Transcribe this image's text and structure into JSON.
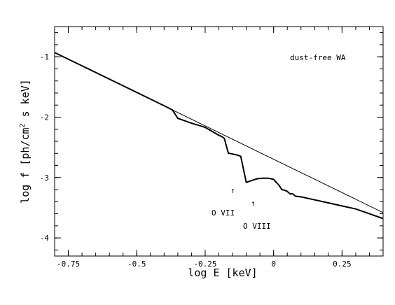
{
  "chart_data": {
    "type": "line",
    "xlabel": "log E [keV]",
    "ylabel_main": "log f [ph/cm",
    "ylabel_sup": "2",
    "ylabel_tail": " s keV]",
    "xlim": [
      -0.8,
      0.4
    ],
    "ylim": [
      -4.3,
      -0.5
    ],
    "xticks": [
      -0.75,
      -0.5,
      -0.25,
      0,
      0.25
    ],
    "xtick_labels": [
      "-0.75",
      "-0.5",
      "-0.25",
      "0",
      "0.25"
    ],
    "yticks": [
      -1,
      -2,
      -3,
      -4
    ],
    "ytick_labels": [
      "-1",
      "-2",
      "-3",
      "-4"
    ],
    "series": [
      {
        "style": "thin",
        "x": [
          -0.8,
          0.4
        ],
        "y": [
          -0.93,
          -3.58
        ]
      },
      {
        "style": "thick",
        "x": [
          -0.8,
          -0.7,
          -0.6,
          -0.5,
          -0.4,
          -0.37,
          -0.35,
          -0.3,
          -0.25,
          -0.2,
          -0.19,
          -0.18,
          -0.17,
          -0.165,
          -0.16,
          -0.13,
          -0.12,
          -0.1,
          -0.08,
          -0.06,
          -0.04,
          -0.02,
          0.0,
          0.02,
          0.03,
          0.04,
          0.05,
          0.06,
          0.07,
          0.08,
          0.1,
          0.15,
          0.2,
          0.25,
          0.3,
          0.35,
          0.4
        ],
        "y": [
          -0.93,
          -1.15,
          -1.37,
          -1.59,
          -1.81,
          -1.88,
          -2.02,
          -2.1,
          -2.17,
          -2.3,
          -2.32,
          -2.35,
          -2.52,
          -2.6,
          -2.6,
          -2.63,
          -2.65,
          -3.08,
          -3.05,
          -3.02,
          -3.01,
          -3.01,
          -3.03,
          -3.13,
          -3.2,
          -3.21,
          -3.23,
          -3.27,
          -3.27,
          -3.31,
          -3.32,
          -3.37,
          -3.42,
          -3.47,
          -3.52,
          -3.6,
          -3.68
        ]
      }
    ],
    "annotations": {
      "legend": "dust-free WA",
      "o7": "O VII",
      "o8": "O VIII",
      "arrow": "↑"
    }
  }
}
